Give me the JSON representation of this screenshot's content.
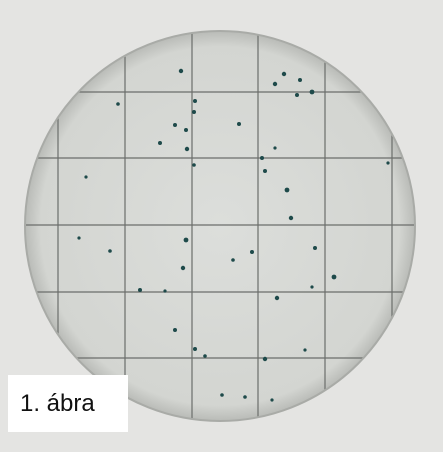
{
  "caption": "1. ábra"
}
